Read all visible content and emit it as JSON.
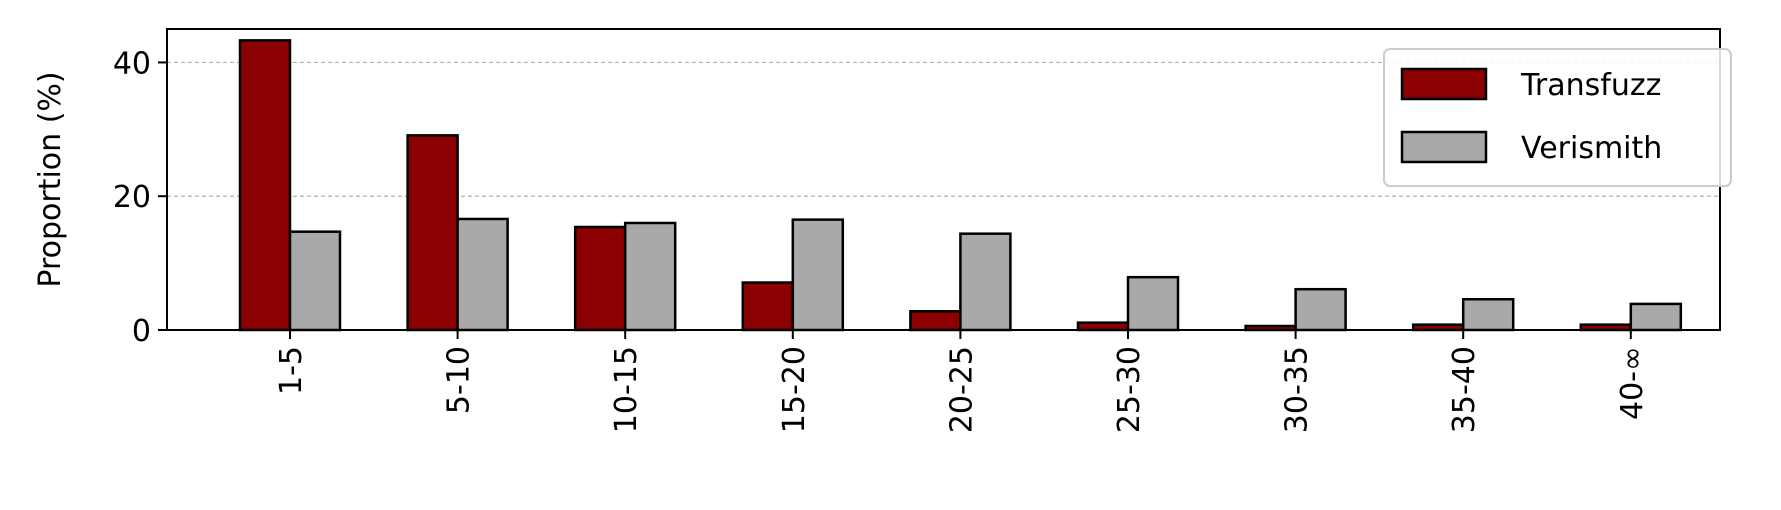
{
  "chart_data": {
    "type": "bar",
    "title": "",
    "xlabel": "",
    "ylabel": "Proportion (%)",
    "ylim": [
      0,
      45
    ],
    "yticks": [
      0,
      20,
      40
    ],
    "grid": "y-dashed",
    "legend_position": "top-right",
    "categories": [
      "1-5",
      "5-10",
      "10-15",
      "15-20",
      "20-25",
      "25-30",
      "30-35",
      "35-40",
      "40-∞"
    ],
    "series": [
      {
        "name": "Transfuzz",
        "color": "#8b0000",
        "values": [
          43.3,
          29.1,
          15.4,
          7.1,
          2.8,
          1.1,
          0.6,
          0.8,
          0.8
        ]
      },
      {
        "name": "Verismith",
        "color": "#a9a9a9",
        "values": [
          14.7,
          16.6,
          16.0,
          16.5,
          14.4,
          7.9,
          6.1,
          4.6,
          3.9
        ]
      }
    ]
  }
}
